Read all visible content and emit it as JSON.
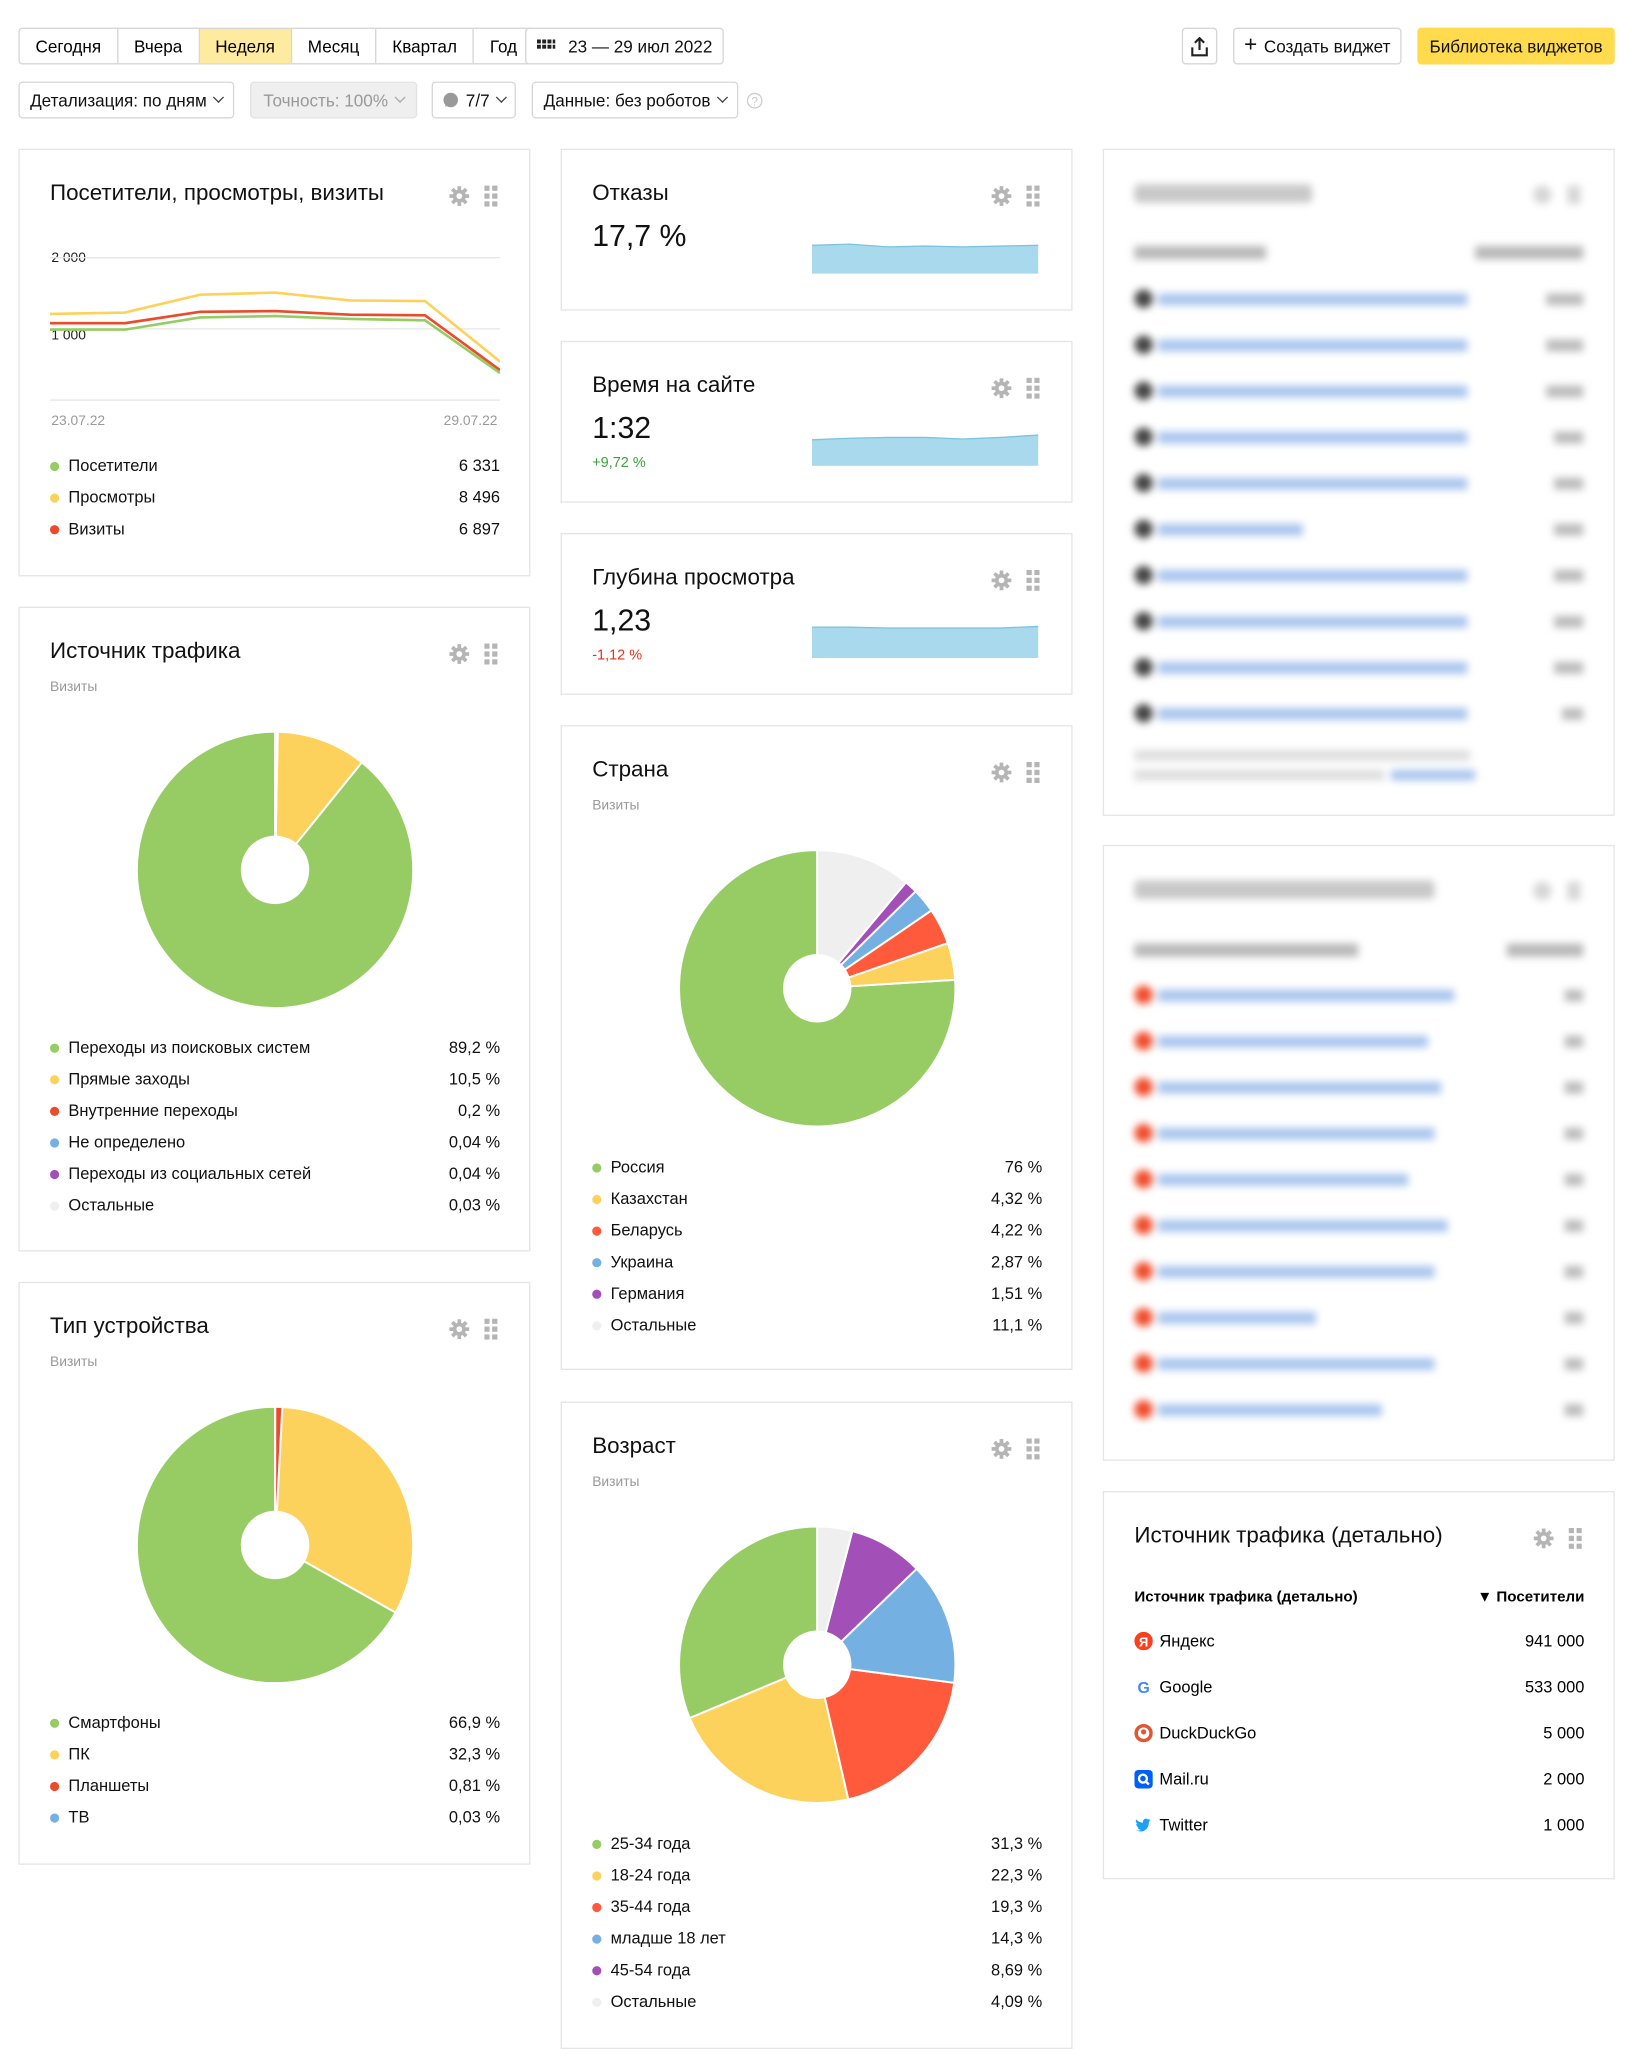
{
  "toolbar": {
    "periods": [
      "Сегодня",
      "Вчера",
      "Неделя",
      "Месяц",
      "Квартал",
      "Год"
    ],
    "active_period": "Неделя",
    "date_range": "23 — 29 июл 2022",
    "create_widget": "Создать виджет",
    "widget_library": "Библиотека виджетов",
    "detail": "Детализация: по дням",
    "accuracy": "Точность: 100%",
    "segments": "7/7",
    "data_filter": "Данные: без роботов"
  },
  "visitors": {
    "title": "Посетители, просмотры, визиты",
    "y_ticks": [
      "2 000",
      "1 000"
    ],
    "date_start": "23.07.22",
    "date_end": "29.07.22",
    "legend": [
      {
        "label": "Посетители",
        "value": "6 331",
        "color": "#97cc64"
      },
      {
        "label": "Просмотры",
        "value": "8 496",
        "color": "#fdd25c"
      },
      {
        "label": "Визиты",
        "value": "6 897",
        "color": "#ea4b2a"
      }
    ],
    "chart_data": {
      "type": "line",
      "x": [
        "23.07.22",
        "24.07.22",
        "25.07.22",
        "26.07.22",
        "27.07.22",
        "28.07.22",
        "29.07.22"
      ],
      "ylim": [
        0,
        2200
      ],
      "series": [
        {
          "name": "Просмотры",
          "color": "#fdd25c",
          "values": [
            1210,
            1230,
            1480,
            1510,
            1400,
            1390,
            540
          ]
        },
        {
          "name": "Визиты",
          "color": "#ea4b2a",
          "values": [
            1080,
            1080,
            1240,
            1250,
            1200,
            1190,
            420
          ]
        },
        {
          "name": "Посетители",
          "color": "#97cc64",
          "values": [
            990,
            990,
            1160,
            1180,
            1140,
            1120,
            380
          ]
        }
      ]
    }
  },
  "bounce": {
    "title": "Отказы",
    "value": "17,7 %",
    "spark": [
      0.72,
      0.75,
      0.68,
      0.7,
      0.68,
      0.7,
      0.72
    ]
  },
  "time_on_site": {
    "title": "Время на сайте",
    "value": "1:32",
    "delta": "+9,72 %",
    "spark": [
      0.66,
      0.7,
      0.72,
      0.72,
      0.68,
      0.72,
      0.78
    ]
  },
  "depth": {
    "title": "Глубина просмотра",
    "value": "1,23",
    "delta": "-1,12 %",
    "spark": [
      0.78,
      0.78,
      0.76,
      0.76,
      0.76,
      0.76,
      0.8
    ]
  },
  "traffic_source": {
    "title": "Источник трафика",
    "subtitle": "Визиты",
    "legend": [
      {
        "label": "Переходы из поисковых систем",
        "value": "89,2 %",
        "color": "#97cc64"
      },
      {
        "label": "Прямые заходы",
        "value": "10,5 %",
        "color": "#fdd25c"
      },
      {
        "label": "Внутренние переходы",
        "value": "0,2 %",
        "color": "#ea4b2a"
      },
      {
        "label": "Не определено",
        "value": "0,04 %",
        "color": "#75b0e3"
      },
      {
        "label": "Переходы из социальных сетей",
        "value": "0,04 %",
        "color": "#a34fb8"
      },
      {
        "label": "Остальные",
        "value": "0,03 %",
        "color": "#efefef"
      }
    ],
    "chart_data": {
      "type": "pie",
      "values": [
        89.2,
        10.5,
        0.2,
        0.04,
        0.04,
        0.03
      ]
    }
  },
  "country": {
    "title": "Страна",
    "subtitle": "Визиты",
    "legend": [
      {
        "label": "Россия",
        "value": "76 %",
        "color": "#97cc64"
      },
      {
        "label": "Казахстан",
        "value": "4,32 %",
        "color": "#fdd25c"
      },
      {
        "label": "Беларусь",
        "value": "4,22 %",
        "color": "#ff5a3c"
      },
      {
        "label": "Украина",
        "value": "2,87 %",
        "color": "#75b0e3"
      },
      {
        "label": "Германия",
        "value": "1,51 %",
        "color": "#a34fb8"
      },
      {
        "label": "Остальные",
        "value": "11,1 %",
        "color": "#efefef"
      }
    ],
    "chart_data": {
      "type": "pie",
      "values": [
        76,
        4.32,
        4.22,
        2.87,
        1.51,
        11.1
      ]
    }
  },
  "device": {
    "title": "Тип устройства",
    "subtitle": "Визиты",
    "legend": [
      {
        "label": "Смартфоны",
        "value": "66,9 %",
        "color": "#97cc64"
      },
      {
        "label": "ПК",
        "value": "32,3 %",
        "color": "#fdd25c"
      },
      {
        "label": "Планшеты",
        "value": "0,81 %",
        "color": "#ea4b2a"
      },
      {
        "label": "ТВ",
        "value": "0,03 %",
        "color": "#75b0e3"
      }
    ],
    "chart_data": {
      "type": "pie",
      "values": [
        66.9,
        32.3,
        0.81,
        0.03
      ]
    }
  },
  "age": {
    "title": "Возраст",
    "subtitle": "Визиты",
    "legend": [
      {
        "label": "25-34 года",
        "value": "31,3 %",
        "color": "#97cc64"
      },
      {
        "label": "18-24 года",
        "value": "22,3 %",
        "color": "#fdd25c"
      },
      {
        "label": "35-44 года",
        "value": "19,3 %",
        "color": "#ff5a3c"
      },
      {
        "label": "младше 18 лет",
        "value": "14,3 %",
        "color": "#75b0e3"
      },
      {
        "label": "45-54 года",
        "value": "8,69 %",
        "color": "#a34fb8"
      },
      {
        "label": "Остальные",
        "value": "4,09 %",
        "color": "#efefef"
      }
    ],
    "chart_data": {
      "type": "pie",
      "values": [
        31.3,
        22.3,
        19.3,
        14.3,
        8.69,
        4.09
      ]
    }
  },
  "source_detail": {
    "title": "Источник трафика (детально)",
    "col_source": "Источник трафика (детально)",
    "col_visitors": "▼ Посетители",
    "rows": [
      {
        "label": "Яндекс",
        "value": "941 000",
        "icon": "yandex-icon"
      },
      {
        "label": "Google",
        "value": "533 000",
        "icon": "google-icon"
      },
      {
        "label": "DuckDuckGo",
        "value": "5 000",
        "icon": "duckduckgo-icon"
      },
      {
        "label": "Mail.ru",
        "value": "2 000",
        "icon": "mailru-icon"
      },
      {
        "label": "Twitter",
        "value": "1 000",
        "icon": "twitter-icon"
      }
    ]
  }
}
